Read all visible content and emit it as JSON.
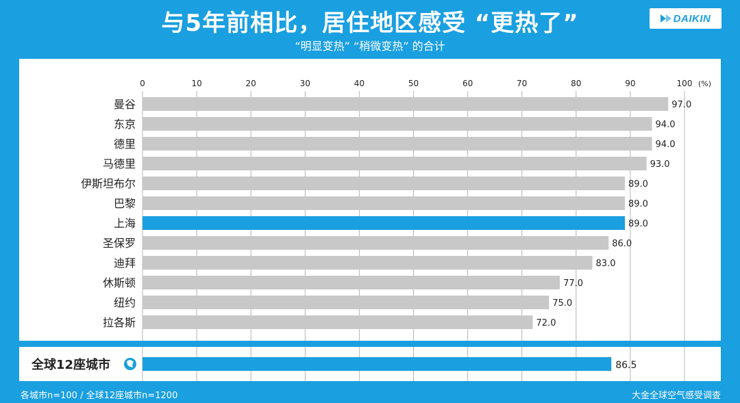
{
  "header": {
    "title": "与5年前相比，居住地区感受 “更热了”",
    "subtitle": "“明显变热” “稍微变热” 的合计",
    "logo_text": "DAIKIN"
  },
  "chart_data": {
    "type": "bar",
    "orientation": "horizontal",
    "unit_label": "(%)",
    "xlim": [
      0,
      100
    ],
    "ticks": [
      0,
      10,
      20,
      30,
      40,
      50,
      60,
      70,
      80,
      90,
      100
    ],
    "categories": [
      "曼谷",
      "东京",
      "德里",
      "马德里",
      "伊斯坦布尔",
      "巴黎",
      "上海",
      "圣保罗",
      "迪拜",
      "休斯顿",
      "纽约",
      "拉各斯"
    ],
    "values": [
      97.0,
      94.0,
      94.0,
      93.0,
      89.0,
      89.0,
      89.0,
      86.0,
      83.0,
      77.0,
      75.0,
      72.0
    ],
    "value_labels": [
      "97.0",
      "94.0",
      "94.0",
      "93.0",
      "89.0",
      "89.0",
      "89.0",
      "86.0",
      "83.0",
      "77.0",
      "75.0",
      "72.0"
    ],
    "highlight": "上海",
    "total": {
      "label": "全球12座城市",
      "value": 86.5,
      "value_label": "86.5"
    },
    "grid": true
  },
  "colors": {
    "background": "#1a9fe0",
    "bar": "#c8c8c8",
    "highlight_bar": "#1a9fe0",
    "grid": "#b4b4b4",
    "text": "#222222"
  },
  "footer": {
    "note": "各城市n=100 / 全球12座城市n=1200",
    "source": "大金全球空气感受调查"
  }
}
